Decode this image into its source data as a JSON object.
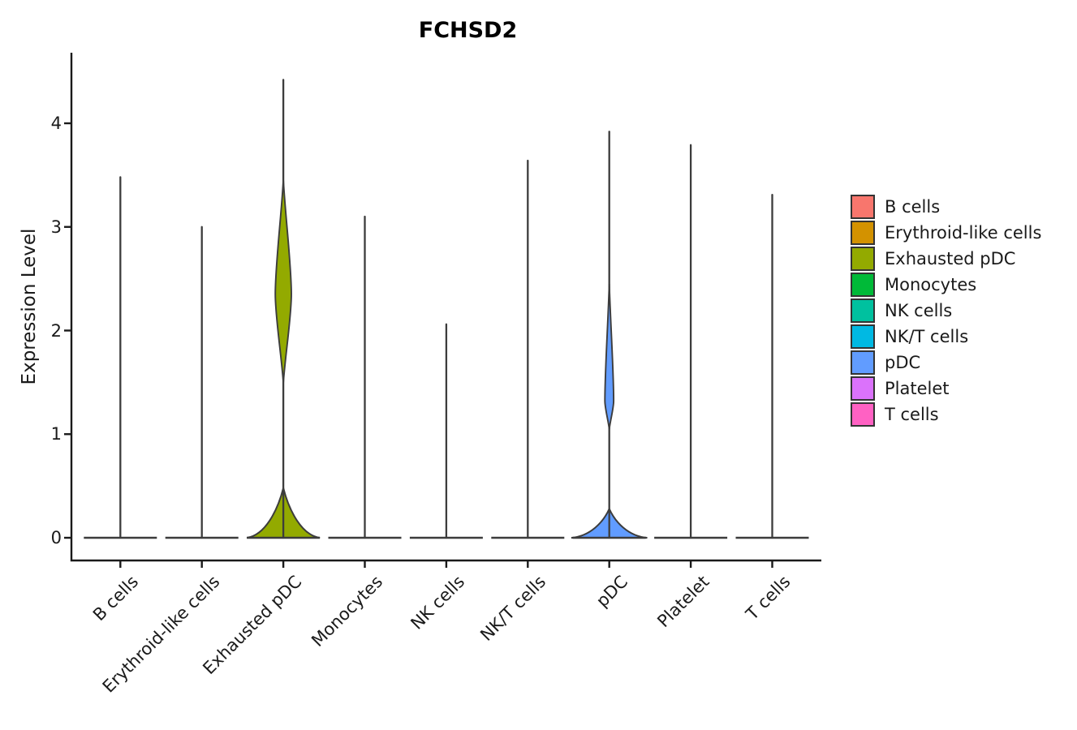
{
  "figure": {
    "title": "FCHSD2",
    "ylabel": "Expression Level"
  },
  "legend": {
    "items": [
      {
        "label": "B cells",
        "color": "#F8766D"
      },
      {
        "label": "Erythroid-like cells",
        "color": "#D39200"
      },
      {
        "label": "Exhausted pDC",
        "color": "#93AA00"
      },
      {
        "label": "Monocytes",
        "color": "#00BA38"
      },
      {
        "label": "NK cells",
        "color": "#00C19F"
      },
      {
        "label": "NK/T cells",
        "color": "#00B9E3"
      },
      {
        "label": "pDC",
        "color": "#619CFF"
      },
      {
        "label": "Platelet",
        "color": "#DB72FB"
      },
      {
        "label": "T cells",
        "color": "#FF61C3"
      }
    ]
  },
  "chart_data": {
    "type": "violin",
    "title": "FCHSD2",
    "xlabel": "",
    "ylabel": "Expression Level",
    "ylim": [
      0,
      4.72
    ],
    "yticks": [
      0,
      1,
      2,
      3,
      4
    ],
    "grid": false,
    "legend_position": "right",
    "outline_color": "#3C3C3C",
    "categories": [
      "B cells",
      "Erythroid-like cells",
      "Exhausted pDC",
      "Monocytes",
      "NK cells",
      "NK/T cells",
      "pDC",
      "Platelet",
      "T cells"
    ],
    "series": [
      {
        "name": "B cells",
        "color": "#F8766D",
        "max_value": 3.48,
        "bulge": null,
        "base_bump": null
      },
      {
        "name": "Erythroid-like cells",
        "color": "#D39200",
        "max_value": 3.0,
        "bulge": null,
        "base_bump": null
      },
      {
        "name": "Exhausted pDC",
        "color": "#93AA00",
        "max_value": 4.42,
        "bulge": {
          "from": 1.5,
          "to": 3.45,
          "peak": 2.35,
          "halfwidth_rel": 0.22
        },
        "base_bump": {
          "height": 0.48,
          "halfwidth_rel": 1.0
        }
      },
      {
        "name": "Monocytes",
        "color": "#00BA38",
        "max_value": 3.1,
        "bulge": null,
        "base_bump": null
      },
      {
        "name": "NK cells",
        "color": "#00C19F",
        "max_value": 2.06,
        "bulge": null,
        "base_bump": null
      },
      {
        "name": "NK/T cells",
        "color": "#00B9E3",
        "max_value": 3.64,
        "bulge": null,
        "base_bump": null
      },
      {
        "name": "pDC",
        "color": "#619CFF",
        "max_value": 3.92,
        "bulge": {
          "from": 1.05,
          "to": 2.45,
          "peak": 1.32,
          "halfwidth_rel": 0.12
        },
        "base_bump": {
          "height": 0.28,
          "halfwidth_rel": 1.04
        }
      },
      {
        "name": "Platelet",
        "color": "#DB72FB",
        "max_value": 3.79,
        "bulge": null,
        "base_bump": null
      },
      {
        "name": "T cells",
        "color": "#FF61C3",
        "max_value": 3.31,
        "bulge": null,
        "base_bump": null
      }
    ]
  }
}
